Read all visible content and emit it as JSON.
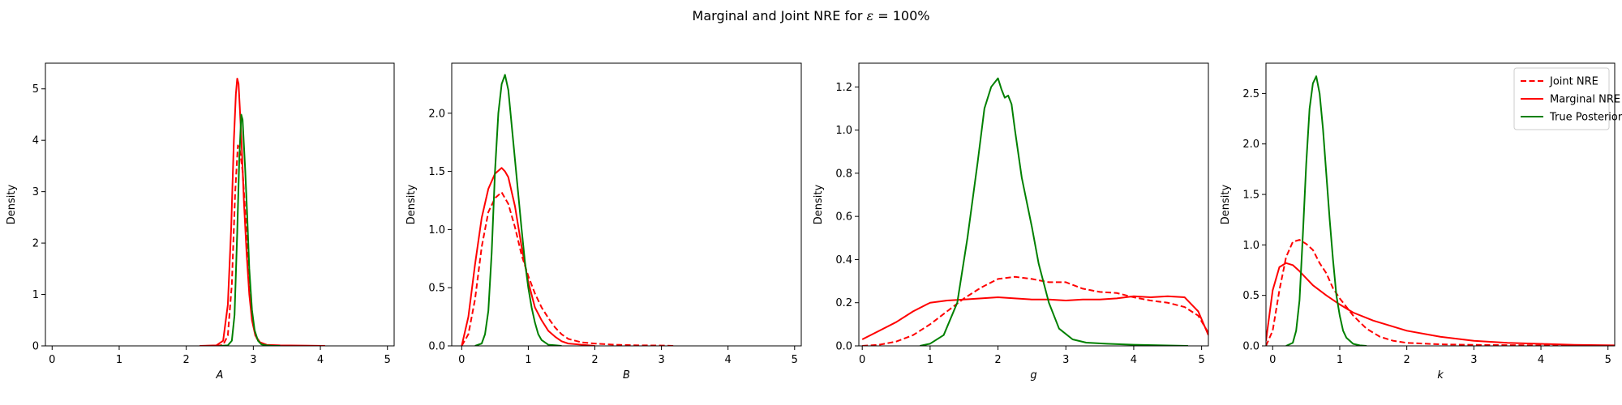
{
  "figure": {
    "title_prefix": "Marginal and Joint NRE for ",
    "title_symbol": "ε",
    "title_suffix": " =  100%"
  },
  "legend": {
    "location": "upper right",
    "entries": [
      "Joint NRE",
      "Marginal NRE",
      "True Posterior"
    ]
  },
  "colors": {
    "joint": "#ff0000",
    "marginal": "#ff0000",
    "true": "#008000"
  },
  "chart_data": [
    {
      "type": "line",
      "xlabel": "A",
      "ylabel": "Density",
      "xlim": [
        -0.1,
        5.1
      ],
      "ylim": [
        0,
        5.5
      ],
      "xticks": [
        0,
        1,
        2,
        3,
        4,
        5
      ],
      "yticks": [
        0,
        1,
        2,
        3,
        4,
        5
      ],
      "grid": false,
      "series": [
        {
          "name": "Joint NRE",
          "style": "dashed",
          "color": "#ff0000",
          "x": [
            2.45,
            2.55,
            2.62,
            2.68,
            2.73,
            2.77,
            2.8,
            2.84,
            2.88,
            2.92,
            2.96,
            3.0,
            3.05,
            3.1,
            3.2,
            3.35,
            3.5
          ],
          "y": [
            0,
            0.02,
            0.2,
            1.2,
            3.0,
            3.9,
            3.8,
            3.4,
            2.6,
            1.7,
            0.9,
            0.4,
            0.15,
            0.05,
            0.01,
            0,
            0
          ]
        },
        {
          "name": "Marginal NRE",
          "style": "solid",
          "color": "#ff0000",
          "x": [
            2.2,
            2.45,
            2.55,
            2.62,
            2.67,
            2.71,
            2.74,
            2.76,
            2.78,
            2.8,
            2.83,
            2.86,
            2.9,
            2.94,
            2.98,
            3.03,
            3.1,
            3.2,
            3.4,
            3.7,
            4.07
          ],
          "y": [
            0,
            0.01,
            0.1,
            0.8,
            2.3,
            4.0,
            4.9,
            5.2,
            5.1,
            4.6,
            3.8,
            2.8,
            1.8,
            1.0,
            0.5,
            0.2,
            0.07,
            0.02,
            0.01,
            0.005,
            0
          ]
        },
        {
          "name": "True Posterior",
          "style": "solid",
          "color": "#008000",
          "x": [
            2.5,
            2.62,
            2.68,
            2.72,
            2.76,
            2.79,
            2.82,
            2.84,
            2.86,
            2.88,
            2.91,
            2.94,
            2.98,
            3.02,
            3.07,
            3.12,
            3.2,
            3.3,
            3.4
          ],
          "y": [
            0,
            0.01,
            0.1,
            0.6,
            2.2,
            3.6,
            4.5,
            4.4,
            3.9,
            3.4,
            2.5,
            1.5,
            0.7,
            0.3,
            0.1,
            0.03,
            0.01,
            0,
            0
          ]
        }
      ]
    },
    {
      "type": "line",
      "xlabel": "B",
      "ylabel": "Density",
      "xlim": [
        -0.15,
        5.1
      ],
      "ylim": [
        0,
        2.43
      ],
      "xticks": [
        0,
        1,
        2,
        3,
        4,
        5
      ],
      "yticks": [
        0.0,
        0.5,
        1.0,
        1.5,
        2.0
      ],
      "grid": false,
      "series": [
        {
          "name": "Joint NRE",
          "style": "dashed",
          "color": "#ff0000",
          "x": [
            0,
            0.1,
            0.2,
            0.3,
            0.4,
            0.5,
            0.6,
            0.7,
            0.8,
            0.9,
            1.0,
            1.1,
            1.2,
            1.3,
            1.4,
            1.5,
            1.6,
            1.8,
            2.0,
            2.3,
            2.6,
            3.0,
            3.2
          ],
          "y": [
            0,
            0.1,
            0.4,
            0.85,
            1.15,
            1.27,
            1.32,
            1.22,
            1.02,
            0.78,
            0.6,
            0.45,
            0.33,
            0.24,
            0.16,
            0.1,
            0.06,
            0.03,
            0.02,
            0.01,
            0.005,
            0.003,
            0
          ]
        },
        {
          "name": "Marginal NRE",
          "style": "solid",
          "color": "#ff0000",
          "x": [
            0,
            0.1,
            0.2,
            0.3,
            0.4,
            0.5,
            0.6,
            0.65,
            0.7,
            0.8,
            0.9,
            1.0,
            1.1,
            1.2,
            1.3,
            1.4,
            1.5,
            1.6,
            1.8,
            2.0
          ],
          "y": [
            0,
            0.25,
            0.7,
            1.1,
            1.35,
            1.48,
            1.53,
            1.5,
            1.45,
            1.2,
            0.85,
            0.55,
            0.33,
            0.22,
            0.13,
            0.08,
            0.04,
            0.02,
            0.01,
            0
          ]
        },
        {
          "name": "True Posterior",
          "style": "solid",
          "color": "#008000",
          "x": [
            0.2,
            0.3,
            0.35,
            0.4,
            0.45,
            0.5,
            0.55,
            0.6,
            0.65,
            0.7,
            0.75,
            0.8,
            0.85,
            0.9,
            0.95,
            1.0,
            1.05,
            1.1,
            1.15,
            1.2,
            1.3,
            1.4,
            1.5
          ],
          "y": [
            0,
            0.02,
            0.1,
            0.3,
            0.8,
            1.5,
            2.0,
            2.25,
            2.33,
            2.2,
            1.9,
            1.6,
            1.3,
            1.0,
            0.72,
            0.5,
            0.33,
            0.2,
            0.1,
            0.05,
            0.01,
            0.005,
            0
          ]
        }
      ]
    },
    {
      "type": "line",
      "xlabel": "g",
      "ylabel": "Density",
      "xlim": [
        -0.05,
        5.1
      ],
      "ylim": [
        0,
        1.31
      ],
      "xticks": [
        0,
        1,
        2,
        3,
        4,
        5
      ],
      "yticks": [
        0.0,
        0.2,
        0.4,
        0.6,
        0.8,
        1.0,
        1.2
      ],
      "grid": false,
      "series": [
        {
          "name": "Joint NRE",
          "style": "dashed",
          "color": "#ff0000",
          "x": [
            0,
            0.25,
            0.5,
            0.75,
            1.0,
            1.25,
            1.5,
            1.75,
            2.0,
            2.25,
            2.5,
            2.75,
            3.0,
            3.25,
            3.5,
            3.75,
            4.0,
            4.25,
            4.5,
            4.75,
            4.95,
            5.1
          ],
          "y": [
            0,
            0.005,
            0.02,
            0.05,
            0.1,
            0.16,
            0.22,
            0.27,
            0.31,
            0.32,
            0.31,
            0.295,
            0.295,
            0.265,
            0.25,
            0.245,
            0.225,
            0.21,
            0.2,
            0.18,
            0.14,
            0.06
          ]
        },
        {
          "name": "Marginal NRE",
          "style": "solid",
          "color": "#ff0000",
          "x": [
            0,
            0.25,
            0.5,
            0.75,
            1.0,
            1.25,
            1.5,
            1.75,
            2.0,
            2.25,
            2.5,
            2.75,
            3.0,
            3.25,
            3.5,
            3.75,
            4.0,
            4.25,
            4.5,
            4.75,
            4.95,
            5.1
          ],
          "y": [
            0.03,
            0.07,
            0.11,
            0.16,
            0.2,
            0.21,
            0.215,
            0.22,
            0.225,
            0.22,
            0.215,
            0.215,
            0.21,
            0.215,
            0.215,
            0.22,
            0.23,
            0.225,
            0.23,
            0.225,
            0.16,
            0.05
          ]
        },
        {
          "name": "True Posterior",
          "style": "solid",
          "color": "#008000",
          "x": [
            0.85,
            1.0,
            1.2,
            1.4,
            1.55,
            1.7,
            1.8,
            1.9,
            2.0,
            2.05,
            2.1,
            2.15,
            2.2,
            2.25,
            2.35,
            2.5,
            2.6,
            2.75,
            2.9,
            3.1,
            3.3,
            3.6,
            4.0,
            4.5,
            4.8
          ],
          "y": [
            0,
            0.01,
            0.05,
            0.2,
            0.5,
            0.85,
            1.1,
            1.2,
            1.24,
            1.19,
            1.15,
            1.16,
            1.12,
            1.0,
            0.78,
            0.55,
            0.38,
            0.2,
            0.08,
            0.03,
            0.015,
            0.01,
            0.005,
            0.002,
            0
          ]
        }
      ]
    },
    {
      "type": "line",
      "xlabel": "k",
      "ylabel": "Density",
      "xlim": [
        -0.1,
        5.1
      ],
      "ylim": [
        0,
        2.8
      ],
      "xticks": [
        0,
        1,
        2,
        3,
        4,
        5
      ],
      "yticks": [
        0.0,
        0.5,
        1.0,
        1.5,
        2.0,
        2.5
      ],
      "grid": false,
      "series": [
        {
          "name": "Joint NRE",
          "style": "dashed",
          "color": "#ff0000",
          "x": [
            -0.1,
            0,
            0.1,
            0.2,
            0.3,
            0.4,
            0.5,
            0.6,
            0.7,
            0.8,
            0.9,
            1.0,
            1.2,
            1.4,
            1.6,
            1.8,
            2.0,
            2.5,
            3.0,
            4.0,
            5.1
          ],
          "y": [
            0,
            0.15,
            0.55,
            0.88,
            1.03,
            1.05,
            1.01,
            0.95,
            0.82,
            0.72,
            0.57,
            0.47,
            0.3,
            0.17,
            0.09,
            0.05,
            0.03,
            0.015,
            0.01,
            0.005,
            0.002
          ]
        },
        {
          "name": "Marginal NRE",
          "style": "solid",
          "color": "#ff0000",
          "x": [
            -0.1,
            0,
            0.1,
            0.2,
            0.3,
            0.4,
            0.6,
            0.8,
            1.0,
            1.2,
            1.5,
            2.0,
            2.5,
            3.0,
            3.5,
            4.0,
            4.5,
            5.1
          ],
          "y": [
            0.05,
            0.55,
            0.78,
            0.82,
            0.8,
            0.74,
            0.6,
            0.5,
            0.41,
            0.33,
            0.25,
            0.15,
            0.09,
            0.05,
            0.03,
            0.02,
            0.01,
            0.005
          ]
        },
        {
          "name": "True Posterior",
          "style": "solid",
          "color": "#008000",
          "x": [
            0.2,
            0.3,
            0.35,
            0.4,
            0.45,
            0.5,
            0.55,
            0.6,
            0.65,
            0.7,
            0.75,
            0.8,
            0.85,
            0.9,
            0.95,
            1.0,
            1.05,
            1.1,
            1.2,
            1.3,
            1.4
          ],
          "y": [
            0,
            0.03,
            0.15,
            0.45,
            1.1,
            1.8,
            2.35,
            2.6,
            2.67,
            2.5,
            2.15,
            1.7,
            1.25,
            0.85,
            0.5,
            0.3,
            0.15,
            0.08,
            0.02,
            0.005,
            0
          ]
        }
      ]
    }
  ]
}
